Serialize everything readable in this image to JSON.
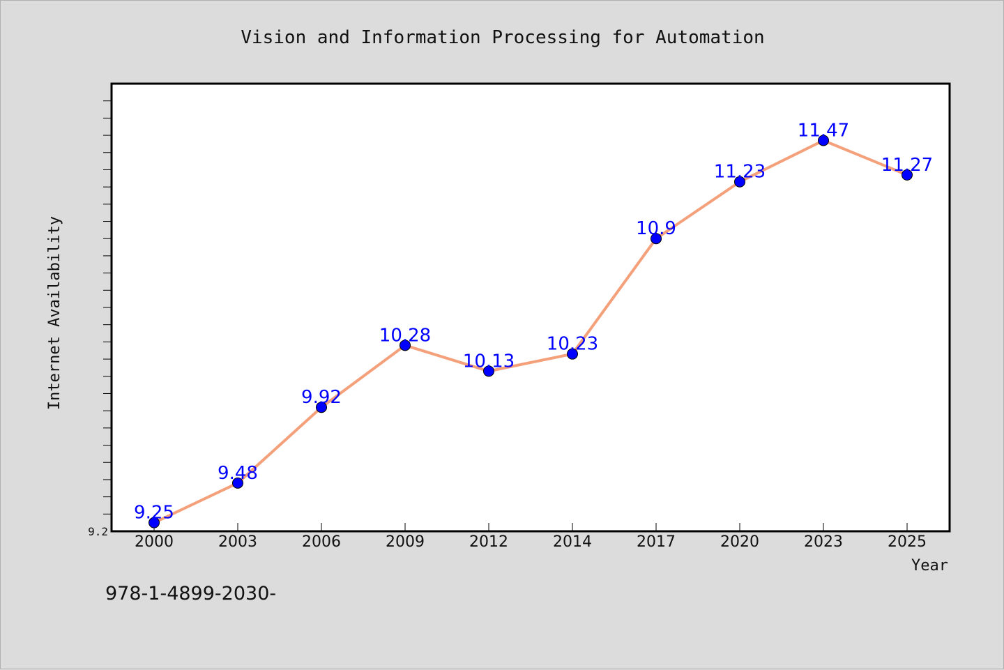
{
  "chart_data": {
    "type": "line",
    "title": "Vision and Information Processing for Automation",
    "xlabel": "Year",
    "ylabel": "Internet Availability",
    "categories": [
      "2000",
      "2003",
      "2006",
      "2009",
      "2012",
      "2014",
      "2017",
      "2020",
      "2023",
      "2025"
    ],
    "series": [
      {
        "values": [
          9.25,
          9.48,
          9.92,
          10.28,
          10.13,
          10.23,
          10.9,
          11.23,
          11.47,
          11.27
        ],
        "labels": [
          "9.25",
          "9.48",
          "9.92",
          "10.28",
          "10.13",
          "10.23",
          "10.9",
          "11.23",
          "11.47",
          "11.27"
        ]
      }
    ],
    "ylim": [
      9.2,
      11.8
    ],
    "yticks_labeled": [
      "9.2"
    ],
    "grid": false,
    "line_color": "#f4a07a",
    "marker_color": "#0000ff",
    "label_color": "#0000ff"
  },
  "footer": {
    "isbn": "978-1-4899-2030-"
  }
}
